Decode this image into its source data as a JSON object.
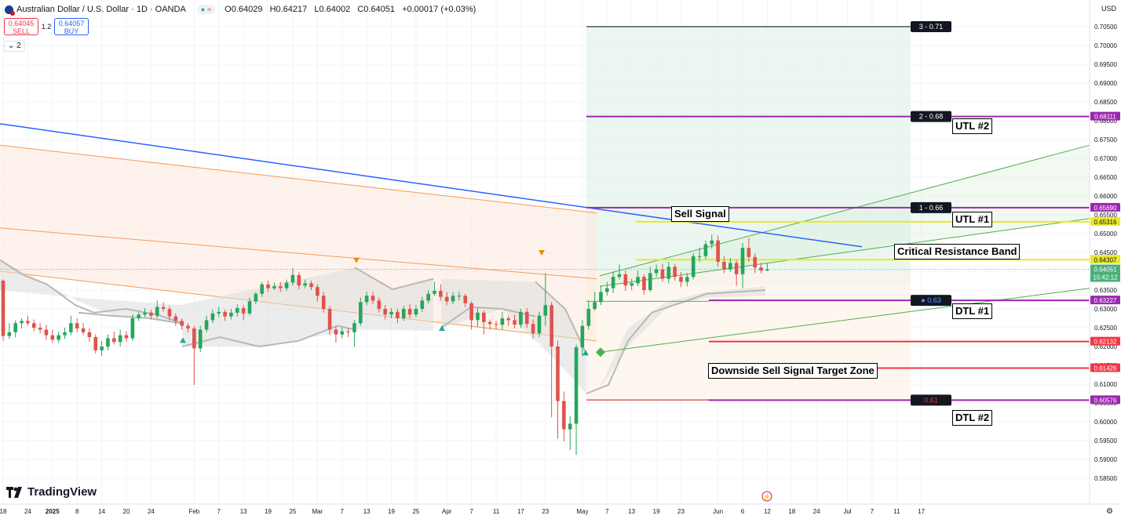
{
  "header": {
    "symbol": "Australian Dollar / U.S. Dollar · 1D · OANDA",
    "open": "O0.64029",
    "high": "H0.64217",
    "low": "L0.64002",
    "close": "C0.64051",
    "change": "+0.00017 (+0.03%)"
  },
  "trade": {
    "sell_price": "0.64045",
    "sell_label": "SELL",
    "spread": "1.2",
    "buy_price": "0.64057",
    "buy_label": "BUY"
  },
  "indicators_count": "2",
  "currency": "USD",
  "brand": "TradingView",
  "chart_data": {
    "type": "candlestick",
    "y_axis": {
      "min": 0.5825,
      "max": 0.7075,
      "ticks": [
        0.585,
        0.59,
        0.595,
        0.6,
        0.605,
        0.61,
        0.615,
        0.62,
        0.625,
        0.63,
        0.635,
        0.64,
        0.645,
        0.65,
        0.655,
        0.66,
        0.665,
        0.67,
        0.675,
        0.68,
        0.685,
        0.69,
        0.695,
        0.7,
        0.705
      ]
    },
    "x_labels": [
      {
        "i": 0,
        "t": "18"
      },
      {
        "i": 4,
        "t": "24"
      },
      {
        "i": 8,
        "t": "2025"
      },
      {
        "i": 12,
        "t": "8"
      },
      {
        "i": 16,
        "t": "14"
      },
      {
        "i": 20,
        "t": "20"
      },
      {
        "i": 24,
        "t": "24"
      },
      {
        "i": 31,
        "t": "Feb"
      },
      {
        "i": 35,
        "t": "7"
      },
      {
        "i": 39,
        "t": "13"
      },
      {
        "i": 43,
        "t": "19"
      },
      {
        "i": 47,
        "t": "25"
      },
      {
        "i": 51,
        "t": "Mar"
      },
      {
        "i": 55,
        "t": "7"
      },
      {
        "i": 59,
        "t": "13"
      },
      {
        "i": 63,
        "t": "19"
      },
      {
        "i": 67,
        "t": "25"
      },
      {
        "i": 72,
        "t": "Apr"
      },
      {
        "i": 76,
        "t": "7"
      },
      {
        "i": 80,
        "t": "11"
      },
      {
        "i": 84,
        "t": "17"
      },
      {
        "i": 88,
        "t": "23"
      },
      {
        "i": 94,
        "t": "May"
      },
      {
        "i": 98,
        "t": "7"
      },
      {
        "i": 102,
        "t": "13"
      },
      {
        "i": 106,
        "t": "19"
      },
      {
        "i": 110,
        "t": "23"
      },
      {
        "i": 116,
        "t": "Jun"
      },
      {
        "i": 120,
        "t": "6"
      },
      {
        "i": 124,
        "t": "12"
      },
      {
        "i": 128,
        "t": "18"
      },
      {
        "i": 132,
        "t": "24"
      },
      {
        "i": 137,
        "t": "Jul"
      },
      {
        "i": 141,
        "t": "7"
      },
      {
        "i": 145,
        "t": "11"
      },
      {
        "i": 149,
        "t": "17"
      }
    ],
    "candles": [
      [
        0.6375,
        0.6228,
        0.6378,
        0.6215
      ],
      [
        0.6228,
        0.6238,
        0.6262,
        0.622
      ],
      [
        0.6238,
        0.6262,
        0.627,
        0.6225
      ],
      [
        0.6262,
        0.6268,
        0.6275,
        0.6248
      ],
      [
        0.6268,
        0.6262,
        0.6282,
        0.6255
      ],
      [
        0.6262,
        0.625,
        0.6272,
        0.624
      ],
      [
        0.625,
        0.6245,
        0.6262,
        0.6235
      ],
      [
        0.6245,
        0.623,
        0.6258,
        0.6218
      ],
      [
        0.623,
        0.6218,
        0.6245,
        0.621
      ],
      [
        0.6218,
        0.623,
        0.624,
        0.621
      ],
      [
        0.623,
        0.6238,
        0.625,
        0.622
      ],
      [
        0.6238,
        0.6262,
        0.6282,
        0.623
      ],
      [
        0.6262,
        0.6248,
        0.6275,
        0.6238
      ],
      [
        0.6248,
        0.6238,
        0.6262,
        0.623
      ],
      [
        0.6238,
        0.6225,
        0.6248,
        0.6212
      ],
      [
        0.6225,
        0.619,
        0.6232,
        0.6182
      ],
      [
        0.619,
        0.62,
        0.6215,
        0.6175
      ],
      [
        0.62,
        0.6222,
        0.6232,
        0.619
      ],
      [
        0.6222,
        0.6212,
        0.624,
        0.6205
      ],
      [
        0.6212,
        0.623,
        0.6245,
        0.62
      ],
      [
        0.623,
        0.6222,
        0.624,
        0.6212
      ],
      [
        0.6222,
        0.6275,
        0.6285,
        0.6215
      ],
      [
        0.6275,
        0.6285,
        0.6292,
        0.6268
      ],
      [
        0.6285,
        0.629,
        0.6302,
        0.6278
      ],
      [
        0.629,
        0.6282,
        0.6298,
        0.6272
      ],
      [
        0.6282,
        0.6305,
        0.6322,
        0.6275
      ],
      [
        0.6305,
        0.63,
        0.6318,
        0.6292
      ],
      [
        0.63,
        0.628,
        0.6308,
        0.627
      ],
      [
        0.628,
        0.6268,
        0.6288,
        0.6255
      ],
      [
        0.6268,
        0.6255,
        0.6275,
        0.6245
      ],
      [
        0.6255,
        0.6248,
        0.6262,
        0.6238
      ],
      [
        0.6248,
        0.6195,
        0.6255,
        0.6098
      ],
      [
        0.6195,
        0.6245,
        0.6255,
        0.6185
      ],
      [
        0.6245,
        0.627,
        0.6282,
        0.6238
      ],
      [
        0.627,
        0.6288,
        0.6298,
        0.6262
      ],
      [
        0.6288,
        0.6292,
        0.6305,
        0.6278
      ],
      [
        0.6292,
        0.628,
        0.6298,
        0.6268
      ],
      [
        0.628,
        0.629,
        0.63,
        0.6272
      ],
      [
        0.629,
        0.6302,
        0.6312,
        0.628
      ],
      [
        0.6302,
        0.6288,
        0.631,
        0.627
      ],
      [
        0.6288,
        0.632,
        0.633,
        0.6282
      ],
      [
        0.632,
        0.634,
        0.6345,
        0.6312
      ],
      [
        0.634,
        0.6365,
        0.6372,
        0.6332
      ],
      [
        0.6365,
        0.6355,
        0.6375,
        0.6345
      ],
      [
        0.6355,
        0.636,
        0.637,
        0.635
      ],
      [
        0.636,
        0.6355,
        0.6372,
        0.6345
      ],
      [
        0.6355,
        0.637,
        0.6378,
        0.6348
      ],
      [
        0.637,
        0.639,
        0.6408,
        0.6362
      ],
      [
        0.639,
        0.6362,
        0.6398,
        0.6352
      ],
      [
        0.6362,
        0.6368,
        0.6378,
        0.6355
      ],
      [
        0.6368,
        0.6358,
        0.6375,
        0.635
      ],
      [
        0.6358,
        0.6335,
        0.6365,
        0.632
      ],
      [
        0.6335,
        0.63,
        0.6345,
        0.629
      ],
      [
        0.63,
        0.6245,
        0.6308,
        0.623
      ],
      [
        0.6245,
        0.6232,
        0.6255,
        0.621
      ],
      [
        0.6232,
        0.624,
        0.625,
        0.6222
      ],
      [
        0.624,
        0.6238,
        0.6248,
        0.6225
      ],
      [
        0.6238,
        0.6262,
        0.627,
        0.62
      ],
      [
        0.6262,
        0.6318,
        0.633,
        0.6255
      ],
      [
        0.6318,
        0.6335,
        0.6345,
        0.631
      ],
      [
        0.6335,
        0.6322,
        0.6345,
        0.6312
      ],
      [
        0.6322,
        0.63,
        0.633,
        0.629
      ],
      [
        0.63,
        0.6285,
        0.631,
        0.6272
      ],
      [
        0.6285,
        0.6292,
        0.6302,
        0.6275
      ],
      [
        0.6292,
        0.6275,
        0.63,
        0.6262
      ],
      [
        0.6275,
        0.63,
        0.6308,
        0.6268
      ],
      [
        0.63,
        0.6285,
        0.6312,
        0.6275
      ],
      [
        0.6285,
        0.63,
        0.631,
        0.6278
      ],
      [
        0.63,
        0.6322,
        0.6332,
        0.6292
      ],
      [
        0.6322,
        0.634,
        0.635,
        0.6315
      ],
      [
        0.634,
        0.6348,
        0.6372,
        0.6335
      ],
      [
        0.6348,
        0.6332,
        0.6365,
        0.6322
      ],
      [
        0.6332,
        0.632,
        0.6345,
        0.631
      ],
      [
        0.632,
        0.6335,
        0.6345,
        0.6312
      ],
      [
        0.6335,
        0.6335,
        0.6345,
        0.6322
      ],
      [
        0.6335,
        0.6315,
        0.634,
        0.6305
      ],
      [
        0.6315,
        0.627,
        0.632,
        0.6245
      ],
      [
        0.627,
        0.629,
        0.6302,
        0.6252
      ],
      [
        0.629,
        0.6265,
        0.6295,
        0.6232
      ],
      [
        0.6265,
        0.626,
        0.6272,
        0.6245
      ],
      [
        0.626,
        0.6258,
        0.6268,
        0.6245
      ],
      [
        0.6258,
        0.6275,
        0.6292,
        0.6245
      ],
      [
        0.6275,
        0.627,
        0.6282,
        0.6255
      ],
      [
        0.627,
        0.6258,
        0.6285,
        0.6248
      ],
      [
        0.6258,
        0.6292,
        0.63,
        0.625
      ],
      [
        0.6292,
        0.626,
        0.6302,
        0.625
      ],
      [
        0.626,
        0.6235,
        0.6272,
        0.622
      ],
      [
        0.6235,
        0.6282,
        0.6292,
        0.6225
      ],
      [
        0.6282,
        0.631,
        0.6395,
        0.6255
      ],
      [
        0.631,
        0.62,
        0.6318,
        0.6012
      ],
      [
        0.62,
        0.6055,
        0.6215,
        0.5955
      ],
      [
        0.6055,
        0.598,
        0.608,
        0.5948
      ],
      [
        0.598,
        0.5995,
        0.6015,
        0.5925
      ],
      [
        0.5995,
        0.6198,
        0.6205,
        0.5912
      ],
      [
        0.6198,
        0.6255,
        0.627,
        0.6175
      ],
      [
        0.6255,
        0.63,
        0.6322,
        0.6245
      ],
      [
        0.63,
        0.6318,
        0.6345,
        0.6295
      ],
      [
        0.6318,
        0.6345,
        0.6362,
        0.631
      ],
      [
        0.6345,
        0.6355,
        0.6372,
        0.6335
      ],
      [
        0.6355,
        0.6385,
        0.64,
        0.6342
      ],
      [
        0.6385,
        0.6392,
        0.6418,
        0.6378
      ],
      [
        0.6392,
        0.6362,
        0.6402,
        0.6348
      ],
      [
        0.6362,
        0.6368,
        0.638,
        0.635
      ],
      [
        0.6368,
        0.6385,
        0.6402,
        0.636
      ],
      [
        0.6385,
        0.635,
        0.6392,
        0.6338
      ],
      [
        0.635,
        0.6395,
        0.6412,
        0.6345
      ],
      [
        0.6395,
        0.6405,
        0.6418,
        0.6385
      ],
      [
        0.6405,
        0.638,
        0.642,
        0.6372
      ],
      [
        0.638,
        0.6412,
        0.6425,
        0.6368
      ],
      [
        0.6412,
        0.6385,
        0.642,
        0.6375
      ],
      [
        0.6385,
        0.6372,
        0.6398,
        0.6358
      ],
      [
        0.6372,
        0.6385,
        0.6395,
        0.636
      ],
      [
        0.6385,
        0.644,
        0.6448,
        0.6378
      ],
      [
        0.644,
        0.644,
        0.6462,
        0.6425
      ],
      [
        0.644,
        0.6472,
        0.6482,
        0.6432
      ],
      [
        0.6472,
        0.6482,
        0.6498,
        0.646
      ],
      [
        0.6482,
        0.6425,
        0.6495,
        0.6412
      ],
      [
        0.6425,
        0.6405,
        0.644,
        0.6395
      ],
      [
        0.6405,
        0.6422,
        0.6435,
        0.6398
      ],
      [
        0.6422,
        0.6392,
        0.643,
        0.6362
      ],
      [
        0.6392,
        0.6462,
        0.6475,
        0.6355
      ],
      [
        0.6462,
        0.6438,
        0.6488,
        0.6425
      ],
      [
        0.6438,
        0.641,
        0.6448,
        0.6395
      ],
      [
        0.641,
        0.6402,
        0.6422,
        0.6395
      ],
      [
        0.6402,
        0.6405,
        0.6422,
        0.64
      ]
    ],
    "levels": [
      {
        "value": 0.705,
        "label": "3 - 0.71",
        "color": "#000000"
      },
      {
        "value": 0.68111,
        "label": "2 - 0.68",
        "color": "#9c27b0",
        "text": "UTL #2"
      },
      {
        "value": 0.6569,
        "label": "1 - 0.66",
        "color": "#9c27b0",
        "text": "UTL #1"
      },
      {
        "value": 0.65316,
        "color": "#e8e82a"
      },
      {
        "value": 0.64307,
        "color": "#e8e82a"
      },
      {
        "value": 0.63227,
        "label": "0.63",
        "color": "#9c27b0",
        "text": "DTL #1"
      },
      {
        "value": 0.62132,
        "color": "#f23645"
      },
      {
        "value": 0.61426,
        "color": "#f23645"
      },
      {
        "value": 0.60576,
        "label": "0.61",
        "color": "#9c27b0",
        "text": "DTL #2"
      }
    ],
    "price_labels": [
      {
        "value": 0.68111,
        "text": "0.68111",
        "bg": "#9c27b0"
      },
      {
        "value": 0.6569,
        "text": "0.65690",
        "bg": "#9c27b0"
      },
      {
        "value": 0.65316,
        "text": "0.65316",
        "bg": "#e8e82a",
        "fg": "#131722"
      },
      {
        "value": 0.64307,
        "text": "0.64307",
        "bg": "#e8e82a",
        "fg": "#131722"
      },
      {
        "value": 0.64051,
        "text": "0.64051",
        "bg": "#4caf7a",
        "sub": "15:42:12"
      },
      {
        "value": 0.63227,
        "text": "0.63227",
        "bg": "#9c27b0"
      },
      {
        "value": 0.62132,
        "text": "0.62132",
        "bg": "#f23645"
      },
      {
        "value": 0.61426,
        "text": "0.61426",
        "bg": "#f23645"
      },
      {
        "value": 0.60576,
        "text": "0.60576",
        "bg": "#9c27b0"
      }
    ],
    "annotations": {
      "sell_signal": "Sell Signal",
      "critical_resistance": "Critical Resistance Band",
      "target_zone": "Downside Sell Signal Target Zone"
    },
    "colors": {
      "up": "#26a65b",
      "down": "#e0524d",
      "trendline": "#2962ff",
      "channel": "#f59a56",
      "green_channel": "#4caf50"
    }
  }
}
